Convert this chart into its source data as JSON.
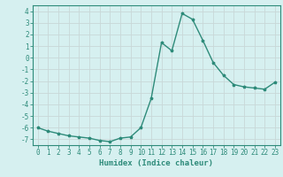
{
  "x": [
    0,
    1,
    2,
    3,
    4,
    5,
    6,
    7,
    8,
    9,
    10,
    11,
    12,
    13,
    14,
    15,
    16,
    17,
    18,
    19,
    20,
    21,
    22,
    23
  ],
  "y": [
    -6.0,
    -6.3,
    -6.5,
    -6.7,
    -6.8,
    -6.9,
    -7.1,
    -7.2,
    -6.9,
    -6.8,
    -6.0,
    -3.5,
    1.3,
    0.6,
    3.8,
    3.3,
    1.5,
    -0.4,
    -1.5,
    -2.3,
    -2.5,
    -2.6,
    -2.7,
    -2.1
  ],
  "line_color": "#2e8b7a",
  "marker": "*",
  "markersize": 2.5,
  "linewidth": 1.0,
  "xlabel": "Humidex (Indice chaleur)",
  "xlim": [
    -0.5,
    23.5
  ],
  "ylim": [
    -7.5,
    4.5
  ],
  "yticks": [
    -7,
    -6,
    -5,
    -4,
    -3,
    -2,
    -1,
    0,
    1,
    2,
    3,
    4
  ],
  "xticks": [
    0,
    1,
    2,
    3,
    4,
    5,
    6,
    7,
    8,
    9,
    10,
    11,
    12,
    13,
    14,
    15,
    16,
    17,
    18,
    19,
    20,
    21,
    22,
    23
  ],
  "bg_color": "#d6f0f0",
  "grid_color": "#c8d8d8",
  "tick_fontsize": 5.5,
  "xlabel_fontsize": 6.5,
  "spine_color": "#2e8b7a"
}
